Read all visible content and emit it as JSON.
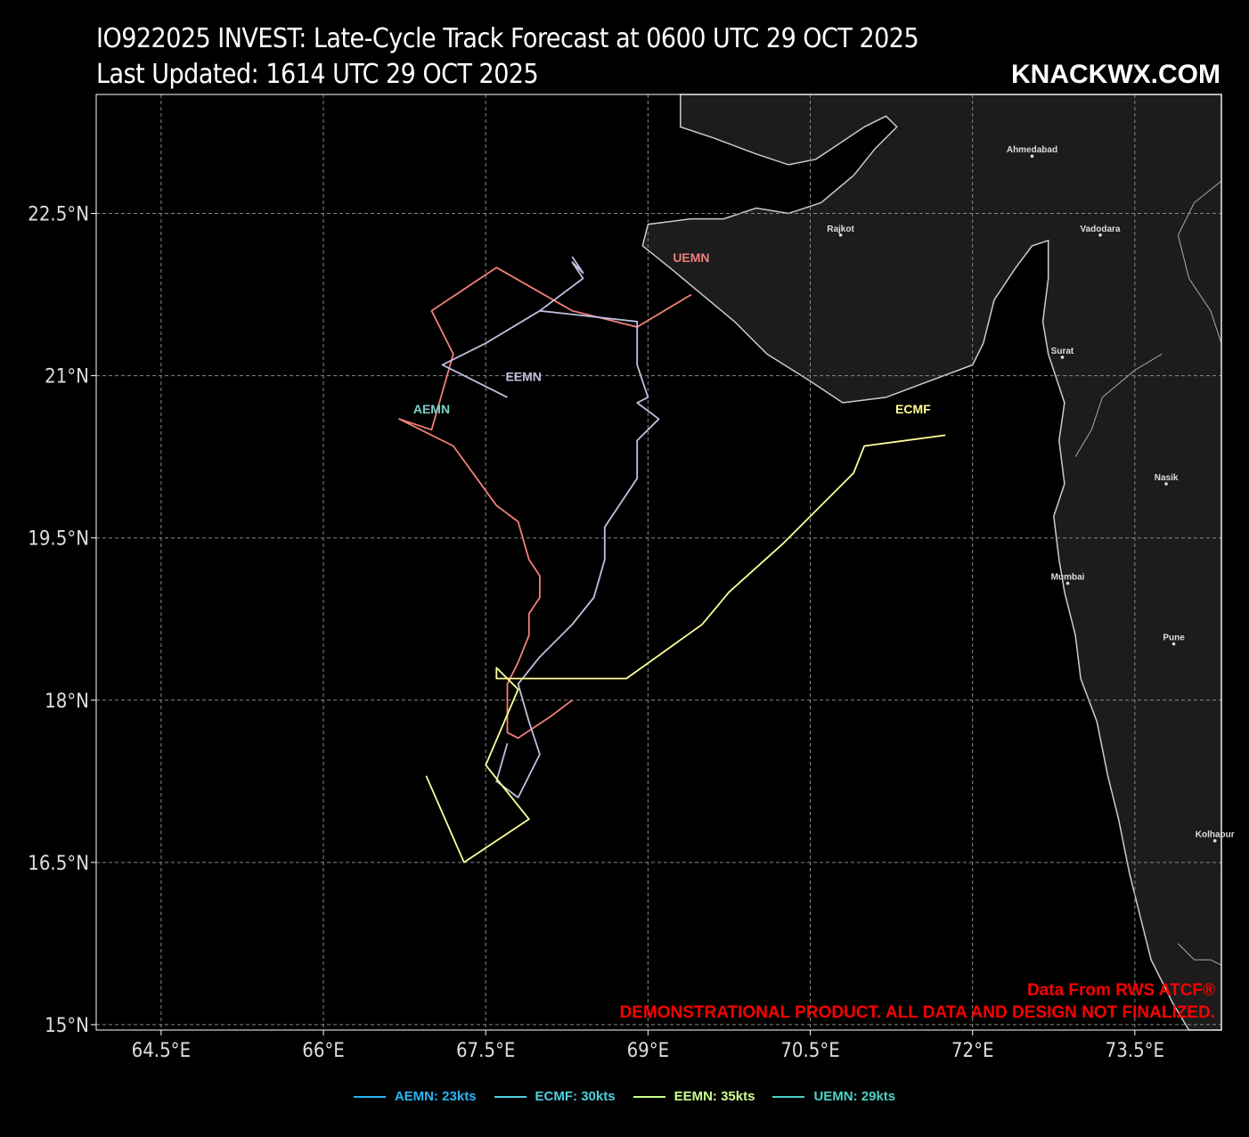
{
  "header": {
    "title": "IO922025 INVEST: Late-Cycle Track Forecast at 0600 UTC 29 OCT 2025",
    "subtitle": "Last Updated: 1614 UTC 29 OCT 2025",
    "brand": "KNACKWX.COM"
  },
  "map": {
    "lon_range": [
      63.9,
      74.3
    ],
    "lat_range": [
      14.95,
      23.6
    ],
    "x_ticks": [
      "64.5°E",
      "66°E",
      "67.5°E",
      "69°E",
      "70.5°E",
      "72°E",
      "73.5°E"
    ],
    "y_ticks": [
      "22.5°N",
      "21°N",
      "19.5°N",
      "18°N",
      "16.5°N",
      "15°N"
    ],
    "ocean_color": "#000000",
    "land_color": "#1c1c1c",
    "coast_color": "#cccccc",
    "cities": [
      {
        "name": "Ahmedabad",
        "lon": 72.55,
        "lat": 23.03
      },
      {
        "name": "Rajkot",
        "lon": 70.78,
        "lat": 22.3
      },
      {
        "name": "Vadodara",
        "lon": 73.18,
        "lat": 22.3
      },
      {
        "name": "Surat",
        "lon": 72.83,
        "lat": 21.17
      },
      {
        "name": "Nasik",
        "lon": 73.79,
        "lat": 20.0
      },
      {
        "name": "Mumbai",
        "lon": 72.88,
        "lat": 19.08
      },
      {
        "name": "Pune",
        "lon": 73.86,
        "lat": 18.52
      },
      {
        "name": "Kolhapur",
        "lon": 74.24,
        "lat": 16.7
      }
    ]
  },
  "tracks": [
    {
      "label": "UEMN",
      "color": "#f08078",
      "points": [
        [
          69.4,
          21.75
        ],
        [
          68.9,
          21.45
        ],
        [
          68.7,
          21.5
        ],
        [
          68.3,
          21.6
        ],
        [
          67.6,
          22.0
        ],
        [
          67.0,
          21.6
        ],
        [
          67.2,
          21.2
        ],
        [
          67.0,
          20.5
        ],
        [
          66.7,
          20.6
        ],
        [
          67.2,
          20.35
        ],
        [
          67.6,
          19.8
        ],
        [
          67.8,
          19.65
        ],
        [
          67.9,
          19.3
        ],
        [
          68.0,
          19.15
        ],
        [
          68.0,
          18.95
        ],
        [
          67.9,
          18.8
        ],
        [
          67.9,
          18.6
        ],
        [
          67.8,
          18.35
        ],
        [
          67.7,
          18.15
        ],
        [
          67.7,
          17.7
        ],
        [
          67.8,
          17.65
        ],
        [
          68.1,
          17.85
        ],
        [
          68.3,
          18.0
        ]
      ],
      "label_pos": [
        69.4,
        22.05
      ]
    },
    {
      "label": "EEMN",
      "color": "#c0c0e0",
      "points": [
        [
          67.7,
          20.8
        ],
        [
          67.3,
          21.0
        ],
        [
          67.1,
          21.1
        ],
        [
          67.5,
          21.3
        ],
        [
          68.0,
          21.6
        ],
        [
          68.9,
          21.5
        ],
        [
          68.9,
          21.1
        ],
        [
          69.0,
          20.8
        ],
        [
          68.9,
          20.75
        ],
        [
          69.1,
          20.6
        ],
        [
          68.9,
          20.4
        ],
        [
          68.9,
          20.05
        ],
        [
          68.6,
          19.6
        ],
        [
          68.6,
          19.3
        ],
        [
          68.5,
          18.95
        ],
        [
          68.3,
          18.7
        ],
        [
          68.0,
          18.4
        ],
        [
          67.8,
          18.15
        ],
        [
          67.9,
          17.8
        ],
        [
          68.0,
          17.5
        ],
        [
          67.8,
          17.1
        ],
        [
          67.6,
          17.25
        ],
        [
          67.7,
          17.6
        ]
      ],
      "extra": [
        [
          68.0,
          21.6
        ],
        [
          68.4,
          21.9
        ],
        [
          68.3,
          22.05
        ],
        [
          68.4,
          21.95
        ],
        [
          68.3,
          22.1
        ]
      ],
      "label_pos": [
        67.85,
        20.95
      ]
    },
    {
      "label": "ECMF",
      "color": "#ffff99",
      "points": [
        [
          71.75,
          20.45
        ],
        [
          71.0,
          20.35
        ],
        [
          70.9,
          20.1
        ],
        [
          70.25,
          19.45
        ],
        [
          69.75,
          19.0
        ],
        [
          69.5,
          18.7
        ],
        [
          68.8,
          18.2
        ],
        [
          68.3,
          18.2
        ],
        [
          67.6,
          18.2
        ],
        [
          67.6,
          18.3
        ],
        [
          67.8,
          18.1
        ],
        [
          67.5,
          17.4
        ],
        [
          67.9,
          16.9
        ],
        [
          67.3,
          16.5
        ],
        [
          66.95,
          17.3
        ]
      ],
      "label_pos": [
        71.45,
        20.65
      ]
    },
    {
      "label": "AEMN",
      "color": "#80d0c8",
      "points": [],
      "label_pos": [
        67.0,
        20.65
      ]
    }
  ],
  "credit": "Data From RWS ATCF®",
  "disclaimer": "DEMONSTRATIONAL PRODUCT. ALL DATA AND DESIGN NOT FINALIZED.",
  "legend": [
    {
      "label": "AEMN: 23kts",
      "color": "#29b6f6"
    },
    {
      "label": "ECMF: 30kts",
      "color": "#4dd0e1"
    },
    {
      "label": "EEMN: 35kts",
      "color": "#ccff90"
    },
    {
      "label": "UEMN: 29kts",
      "color": "#4dd0c8"
    }
  ]
}
